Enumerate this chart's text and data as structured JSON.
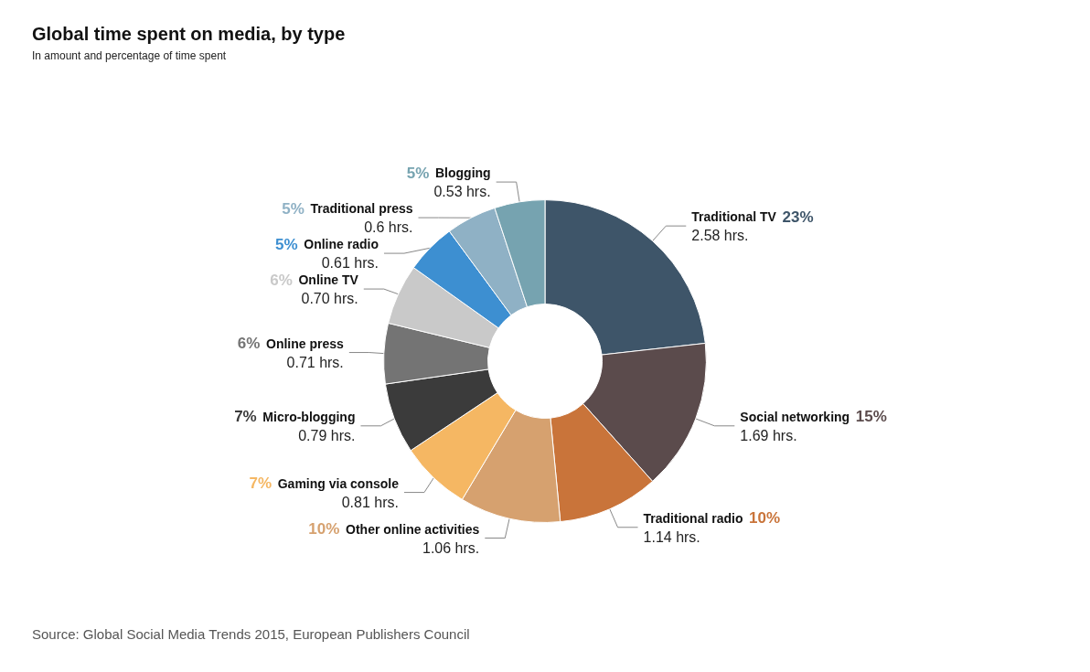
{
  "chart_data": {
    "type": "donut",
    "title": "Global time spent on media, by type",
    "subtitle": "In amount and percentage of time spent",
    "categories": [
      "Traditional TV",
      "Social networking",
      "Traditional radio",
      "Other online activities",
      "Gaming via console",
      "Micro-blogging",
      "Online press",
      "Online TV",
      "Online radio",
      "Traditional press",
      "Blogging"
    ],
    "values": [
      23,
      15,
      10,
      10,
      7,
      7,
      6,
      6,
      5,
      5,
      5
    ],
    "value_labels": [
      "23%\n2.58 hrs.",
      "15%\n1.69 hrs.",
      "10%\n1.14 hrs.",
      "10%\n1.06 hrs.",
      "7%\n0.81 hrs.",
      "7%\n0.79 hrs.",
      "6%\n0.71 hrs.",
      "6%\n0.70 hrs.",
      "5%\n0.61 hrs.",
      "5%\n0.6 hrs.",
      "5%\n0.53 hrs."
    ],
    "colors": [
      "#3e5569",
      "#5b4b4c",
      "#c9743a",
      "#d6a16f",
      "#f5b763",
      "#3b3b3b",
      "#747474",
      "#c9c9c9",
      "#3d8fd1",
      "#8fb1c5",
      "#76a3b0"
    ],
    "annotations": [
      "Source: Global Social Media Trends 2015, European Publishers Council"
    ]
  }
}
